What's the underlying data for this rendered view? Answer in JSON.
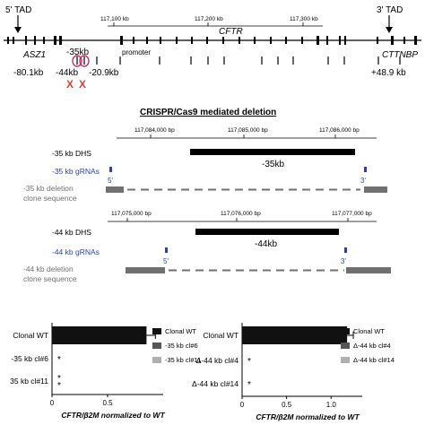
{
  "locus": {
    "tad5": "5' TAD",
    "tad3": "3' TAD",
    "scale": [
      "117,100 kb",
      "117,200 kb",
      "117,300 kb"
    ],
    "gene_cftr": "CFTR",
    "gene_asz1": "ASZ1",
    "gene_cttnbp": "CTTNBP",
    "promoter": "promoter",
    "dhs_35": "-35kb",
    "dhs_44": "-44kb",
    "dhs_20": "-20.9kb",
    "dist_left": "-80.1kb",
    "dist_right": "+48.9 kb",
    "x_mark": "X",
    "colors": {
      "circle": "#d0306a",
      "x_mark": "#e03a3a"
    }
  },
  "deletion": {
    "title": "CRISPR/Cas9 mediated deletion",
    "panel35": {
      "coords": [
        "117,084,000 bp",
        "117,085,000 bp",
        "117,086,000 bp"
      ],
      "dhs_label": "-35 kb DHS",
      "bar_label": "-35kb",
      "grna_label": "-35 kb gRNAs",
      "deletion_label": [
        "-35 kb deletion",
        "clone sequence"
      ],
      "g5": "5'",
      "g3": "3'"
    },
    "panel44": {
      "coords": [
        "117,075,000 bp",
        "117,076,000 bp",
        "117,077,000 bp"
      ],
      "dhs_label": "-44 kb DHS",
      "bar_label": "-44kb",
      "grna_label": "-44 kb gRNAs",
      "deletion_label": [
        "-44 kb deletion",
        "clone sequence"
      ],
      "g5": "5'",
      "g3": "3'"
    },
    "colors": {
      "grna": "#2b3fb0",
      "grey": "#707070"
    }
  },
  "chart_data": [
    {
      "type": "bar",
      "orientation": "horizontal",
      "categories": [
        "Clonal WT",
        "-35 kb cl#6",
        "35 kb cl#11"
      ],
      "values": [
        0.85,
        0.0,
        0.0
      ],
      "error": [
        0.08,
        null,
        null
      ],
      "significance": [
        "",
        "*",
        "* *"
      ],
      "xlabel": "CFTR/β2M normalized to WT",
      "xlim": [
        0,
        1.0
      ],
      "xticks": [
        0,
        0.5
      ],
      "legend": [
        "Clonal WT",
        "-35 kb cl#6",
        "-35 kb cl#11"
      ],
      "legend_colors": [
        "#111111",
        "#555555",
        "#b0b0b0"
      ]
    },
    {
      "type": "bar",
      "orientation": "horizontal",
      "categories": [
        "Clonal WT",
        "Δ-44 kb cl#4",
        "Δ-44 kb cl#14"
      ],
      "values": [
        1.18,
        0.0,
        0.0
      ],
      "error": [
        0.07,
        null,
        null
      ],
      "significance": [
        "",
        "*",
        "*"
      ],
      "xlabel": "CFTR/β2M normalized to WT",
      "xlim": [
        0,
        1.35
      ],
      "xticks": [
        0,
        0.5,
        1.0
      ],
      "legend": [
        "Clonal WT",
        "Δ-44 kb cl#4",
        "Δ-44 kb cl#14"
      ],
      "legend_colors": [
        "#111111",
        "#555555",
        "#b0b0b0"
      ]
    }
  ]
}
